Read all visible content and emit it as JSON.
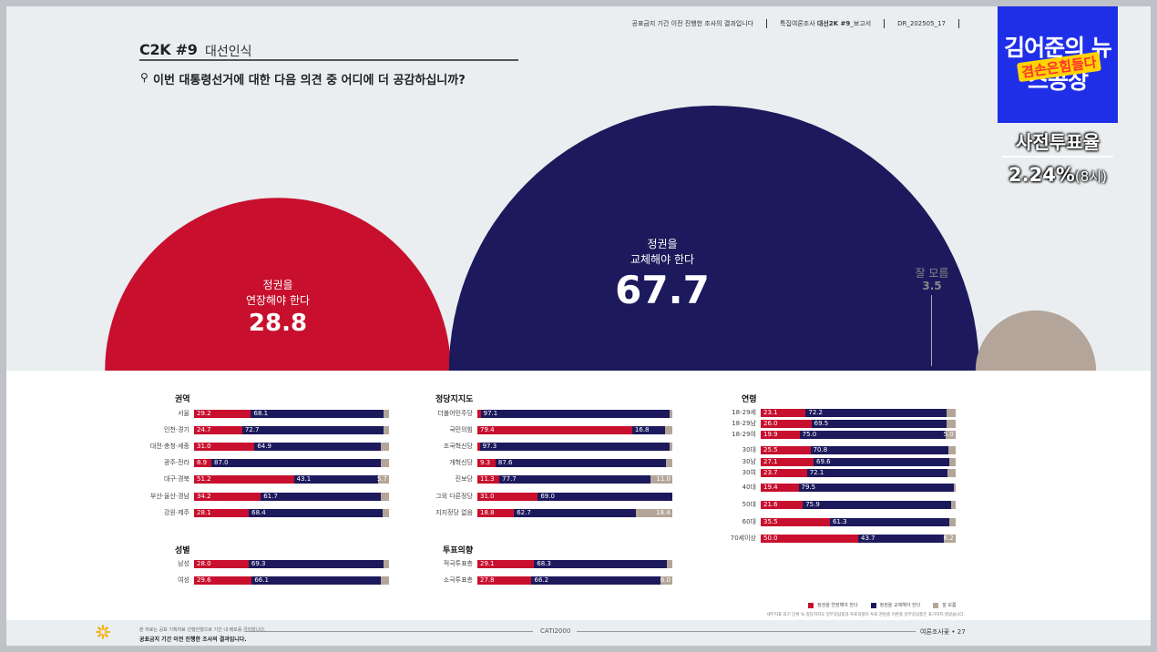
{
  "header": {
    "note": "공표금지 기간 이전 진행한 조사의 결과입니다",
    "survey_prefix": "특집여론조사",
    "survey_bold": "대선2K #9",
    "survey_suffix": "_보고서",
    "doc_id": "DR_202505_17"
  },
  "title": {
    "code": "C2K #9",
    "subtitle": "대선인식"
  },
  "question": {
    "icon": "magnifier-icon",
    "text": "이번 대통령선거에 대한 다음 의견 중 어디에 더 공감하십니까?"
  },
  "colors": {
    "extend": "#c8102e",
    "replace": "#1c1a5c",
    "unsure": "#b3a599"
  },
  "chart_data": [
    {
      "type": "bubble",
      "series": [
        {
          "name": "정권을 연장해야 한다",
          "label_line1": "정권을",
          "label_line2": "연장해야 한다",
          "value": 28.8,
          "value_text": "28.8"
        },
        {
          "name": "정권을 교체해야 한다",
          "label_line1": "정권을",
          "label_line2": "교체해야 한다",
          "value": 67.7,
          "value_text": "67.7"
        },
        {
          "name": "잘 모름",
          "label_line1": "잘 모름",
          "value": 3.5,
          "value_text": "3.5"
        }
      ]
    },
    {
      "type": "bar",
      "stacked": true,
      "horizontal": true,
      "title": "권역",
      "categories": [
        "서울",
        "인천·경기",
        "대전·충청·세종",
        "광주·전라",
        "대구·경북",
        "부산·울산·경남",
        "강원·제주"
      ],
      "series": [
        {
          "name": "정권을 연장해야 한다",
          "values": [
            29.2,
            24.7,
            31.0,
            8.9,
            51.2,
            34.2,
            28.1
          ]
        },
        {
          "name": "정권을 교체해야 한다",
          "values": [
            68.1,
            72.7,
            64.9,
            87.0,
            43.1,
            61.7,
            68.4
          ]
        },
        {
          "name": "잘 모름",
          "values": [
            2.7,
            2.6,
            4.1,
            4.1,
            5.7,
            4.1,
            3.5
          ]
        }
      ],
      "unsure_labels": [
        "",
        "",
        "",
        "",
        "5.7",
        "",
        ""
      ]
    },
    {
      "type": "bar",
      "stacked": true,
      "horizontal": true,
      "title": "성별",
      "categories": [
        "남성",
        "여성"
      ],
      "series": [
        {
          "name": "정권을 연장해야 한다",
          "values": [
            28.0,
            29.6
          ]
        },
        {
          "name": "정권을 교체해야 한다",
          "values": [
            69.3,
            66.1
          ]
        },
        {
          "name": "잘 모름",
          "values": [
            2.7,
            4.3
          ]
        }
      ],
      "unsure_labels": [
        "",
        ""
      ]
    },
    {
      "type": "bar",
      "stacked": true,
      "horizontal": true,
      "title": "정당지지도",
      "categories": [
        "더불어민주당",
        "국민의힘",
        "조국혁신당",
        "개혁신당",
        "진보당",
        "그외 다른정당",
        "지지정당 없음"
      ],
      "series": [
        {
          "name": "정권을 연장해야 한다",
          "values": [
            1.7,
            79.4,
            1.2,
            9.3,
            11.3,
            31.0,
            18.8
          ]
        },
        {
          "name": "정권을 교체해야 한다",
          "values": [
            97.1,
            16.8,
            97.3,
            87.6,
            77.7,
            69.0,
            62.7
          ]
        },
        {
          "name": "잘 모름",
          "values": [
            1.2,
            3.8,
            1.5,
            3.1,
            11.0,
            0.0,
            18.4
          ]
        }
      ],
      "red_labels": [
        "",
        "79.4",
        "",
        "9.3",
        "11.3",
        "31.0",
        "18.8"
      ],
      "unsure_labels": [
        "",
        "",
        "",
        "",
        "11.0",
        "",
        "18.4"
      ]
    },
    {
      "type": "bar",
      "stacked": true,
      "horizontal": true,
      "title": "투표의향",
      "categories": [
        "적극투표층",
        "소극투표층"
      ],
      "series": [
        {
          "name": "정권을 연장해야 한다",
          "values": [
            29.1,
            27.8
          ]
        },
        {
          "name": "정권을 교체해야 한다",
          "values": [
            68.3,
            66.2
          ]
        },
        {
          "name": "잘 모름",
          "values": [
            2.6,
            6.0
          ]
        }
      ],
      "unsure_labels": [
        "",
        "6.0"
      ]
    },
    {
      "type": "bar",
      "stacked": true,
      "horizontal": true,
      "title": "연령",
      "categories": [
        "18-29세",
        "18-29남",
        "18-29여",
        "30대",
        "30남",
        "30여",
        "40대",
        "50대",
        "60대",
        "70세이상"
      ],
      "series": [
        {
          "name": "정권을 연장해야 한다",
          "values": [
            23.1,
            26.0,
            19.9,
            25.5,
            27.1,
            23.7,
            19.4,
            21.6,
            35.5,
            50.0
          ]
        },
        {
          "name": "정권을 교체해야 한다",
          "values": [
            72.2,
            69.5,
            75.0,
            70.8,
            69.6,
            72.1,
            79.5,
            75.9,
            61.3,
            43.7
          ]
        },
        {
          "name": "잘 모름",
          "values": [
            4.7,
            4.5,
            5.0,
            3.7,
            3.3,
            4.2,
            1.1,
            2.5,
            3.2,
            6.2
          ]
        }
      ],
      "unsure_labels": [
        "",
        "",
        "5.0",
        "",
        "",
        "",
        "",
        "",
        "",
        "6.2"
      ]
    }
  ],
  "legend": {
    "items": [
      {
        "label": "정권을 연장해야 한다",
        "color": "#c8102e"
      },
      {
        "label": "정권을 교체해야 한다",
        "color": "#1c1a5c"
      },
      {
        "label": "잘 모름",
        "color": "#b3a599"
      }
    ],
    "note": "세부지표 표기 단위 % 정당지지도 일부응답층과 투표의향이 투표 관련층 이론층 일부응답층은 표기하지 않았습니다."
  },
  "footer": {
    "line1": "본 자료는 공표 기획자료 선행진행으로 기간 내 배포를 금지합니다.",
    "line2": "공표금지 기간 이전 진행한 조사의 결과입니다.",
    "center": "CATI2000",
    "right": "여론조사꽃 • 27"
  },
  "overlay": {
    "show_title": "김어준의 뉴스공장",
    "show_tag": "겸손은힘들다",
    "turnout_label": "사전투표율",
    "turnout_value": "2.24%",
    "turnout_time": "(8시)"
  }
}
